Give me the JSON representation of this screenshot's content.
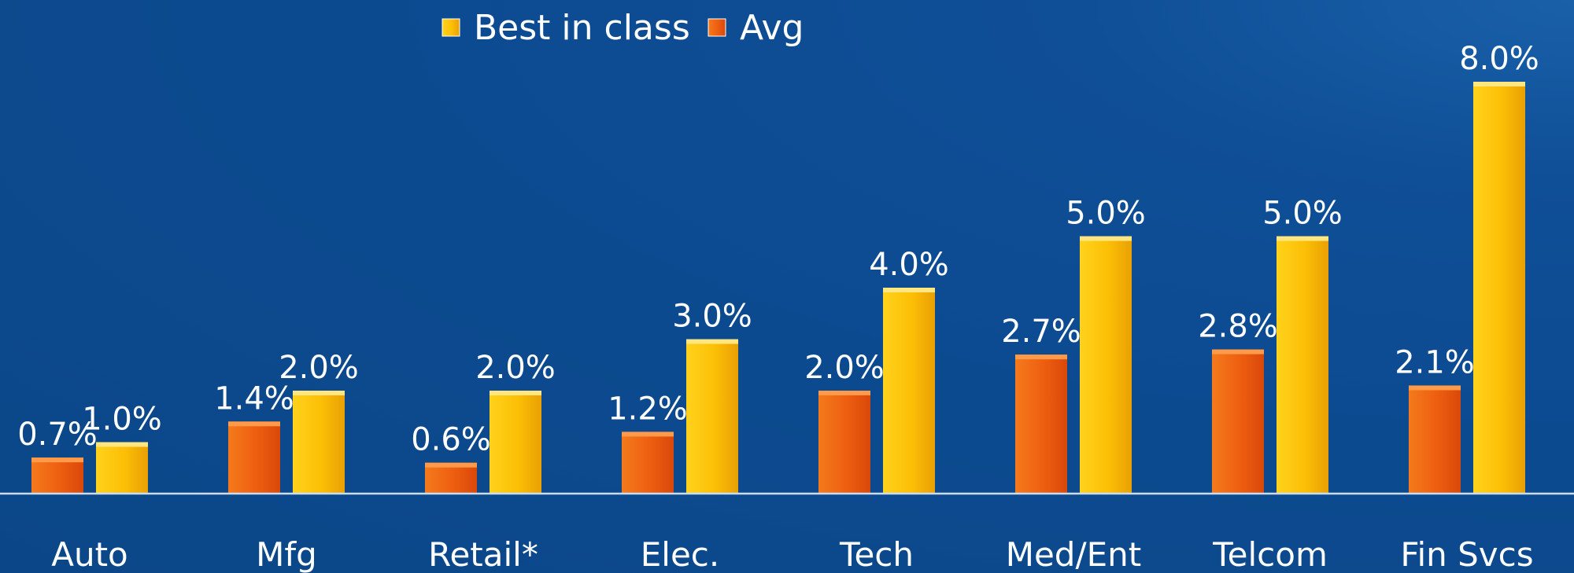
{
  "chart_data": {
    "type": "bar",
    "categories": [
      "Auto",
      "Mfg",
      "Retail*",
      "Elec.",
      "Tech",
      "Med/Ent",
      "Telcom",
      "Fin Svcs"
    ],
    "series": [
      {
        "name": "Avg",
        "color": "#f0620f",
        "values": [
          0.7,
          1.4,
          0.6,
          1.2,
          2.0,
          2.7,
          2.8,
          2.1
        ],
        "labels": [
          "0.7%",
          "1.4%",
          "0.6%",
          "1.2%",
          "2.0%",
          "2.7%",
          "2.8%",
          "2.1%"
        ]
      },
      {
        "name": "Best in class",
        "color": "#fcbf06",
        "values": [
          1.0,
          2.0,
          2.0,
          3.0,
          4.0,
          5.0,
          5.0,
          8.0
        ],
        "labels": [
          "1.0%",
          "2.0%",
          "2.0%",
          "3.0%",
          "4.0%",
          "5.0%",
          "5.0%",
          "8.0%"
        ]
      }
    ],
    "legend_order": [
      "Best in class",
      "Avg"
    ],
    "legend_position": "top-center",
    "ylim": [
      0,
      8.0
    ],
    "grid": false,
    "title": "",
    "xlabel": "",
    "ylabel": ""
  }
}
